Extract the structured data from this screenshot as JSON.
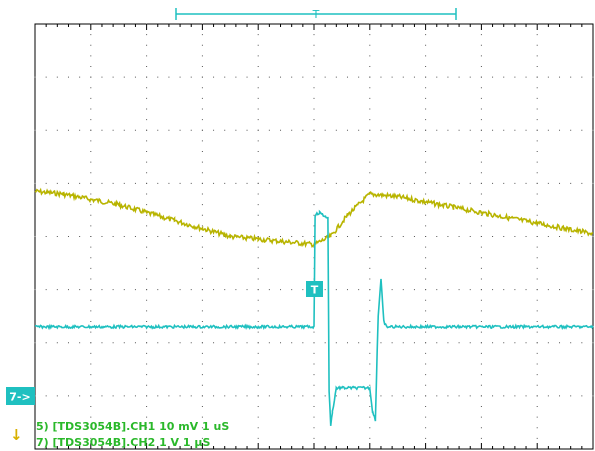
{
  "chart_data": {
    "type": "line",
    "x_divisions": 10,
    "y_divisions": 8,
    "grid": true,
    "series": [
      {
        "name": "CH1",
        "color": "#b8b400",
        "points": [
          [
            0,
            3.15
          ],
          [
            0.5,
            3.2
          ],
          [
            1,
            3.3
          ],
          [
            1.5,
            3.4
          ],
          [
            2,
            3.55
          ],
          [
            2.5,
            3.7
          ],
          [
            3,
            3.85
          ],
          [
            3.5,
            4.0
          ],
          [
            4,
            4.05
          ],
          [
            4.5,
            4.1
          ],
          [
            5,
            4.15
          ],
          [
            5.3,
            4.0
          ],
          [
            5.6,
            3.6
          ],
          [
            6.0,
            3.2
          ],
          [
            6.5,
            3.25
          ],
          [
            7,
            3.35
          ],
          [
            7.5,
            3.45
          ],
          [
            8,
            3.55
          ],
          [
            8.5,
            3.65
          ],
          [
            9,
            3.75
          ],
          [
            9.5,
            3.85
          ],
          [
            10,
            3.95
          ]
        ]
      },
      {
        "name": "CH2",
        "color": "#1fc0c0",
        "points": [
          [
            0,
            5.7
          ],
          [
            5.0,
            5.7
          ],
          [
            5.02,
            3.6
          ],
          [
            5.1,
            3.55
          ],
          [
            5.2,
            3.62
          ],
          [
            5.25,
            3.65
          ],
          [
            5.27,
            6.9
          ],
          [
            5.3,
            7.55
          ],
          [
            5.33,
            7.3
          ],
          [
            5.4,
            6.85
          ],
          [
            6.0,
            6.85
          ],
          [
            6.05,
            7.3
          ],
          [
            6.1,
            7.45
          ],
          [
            6.15,
            5.5
          ],
          [
            6.2,
            4.8
          ],
          [
            6.25,
            5.6
          ],
          [
            6.3,
            5.7
          ],
          [
            10,
            5.7
          ]
        ]
      }
    ],
    "ch2_ground_level": 7.0,
    "trigger_position": 5.0,
    "trigger_level": 4.5,
    "labels": {
      "trigger_marker": "T",
      "ch2_marker": "7->",
      "arrow_marker": "↓",
      "readout_ch1": "5) [TDS3054B].CH1  10 mV   1 uS",
      "readout_ch2": "7) [TDS3054B].CH2  1 V   1 µS"
    }
  }
}
